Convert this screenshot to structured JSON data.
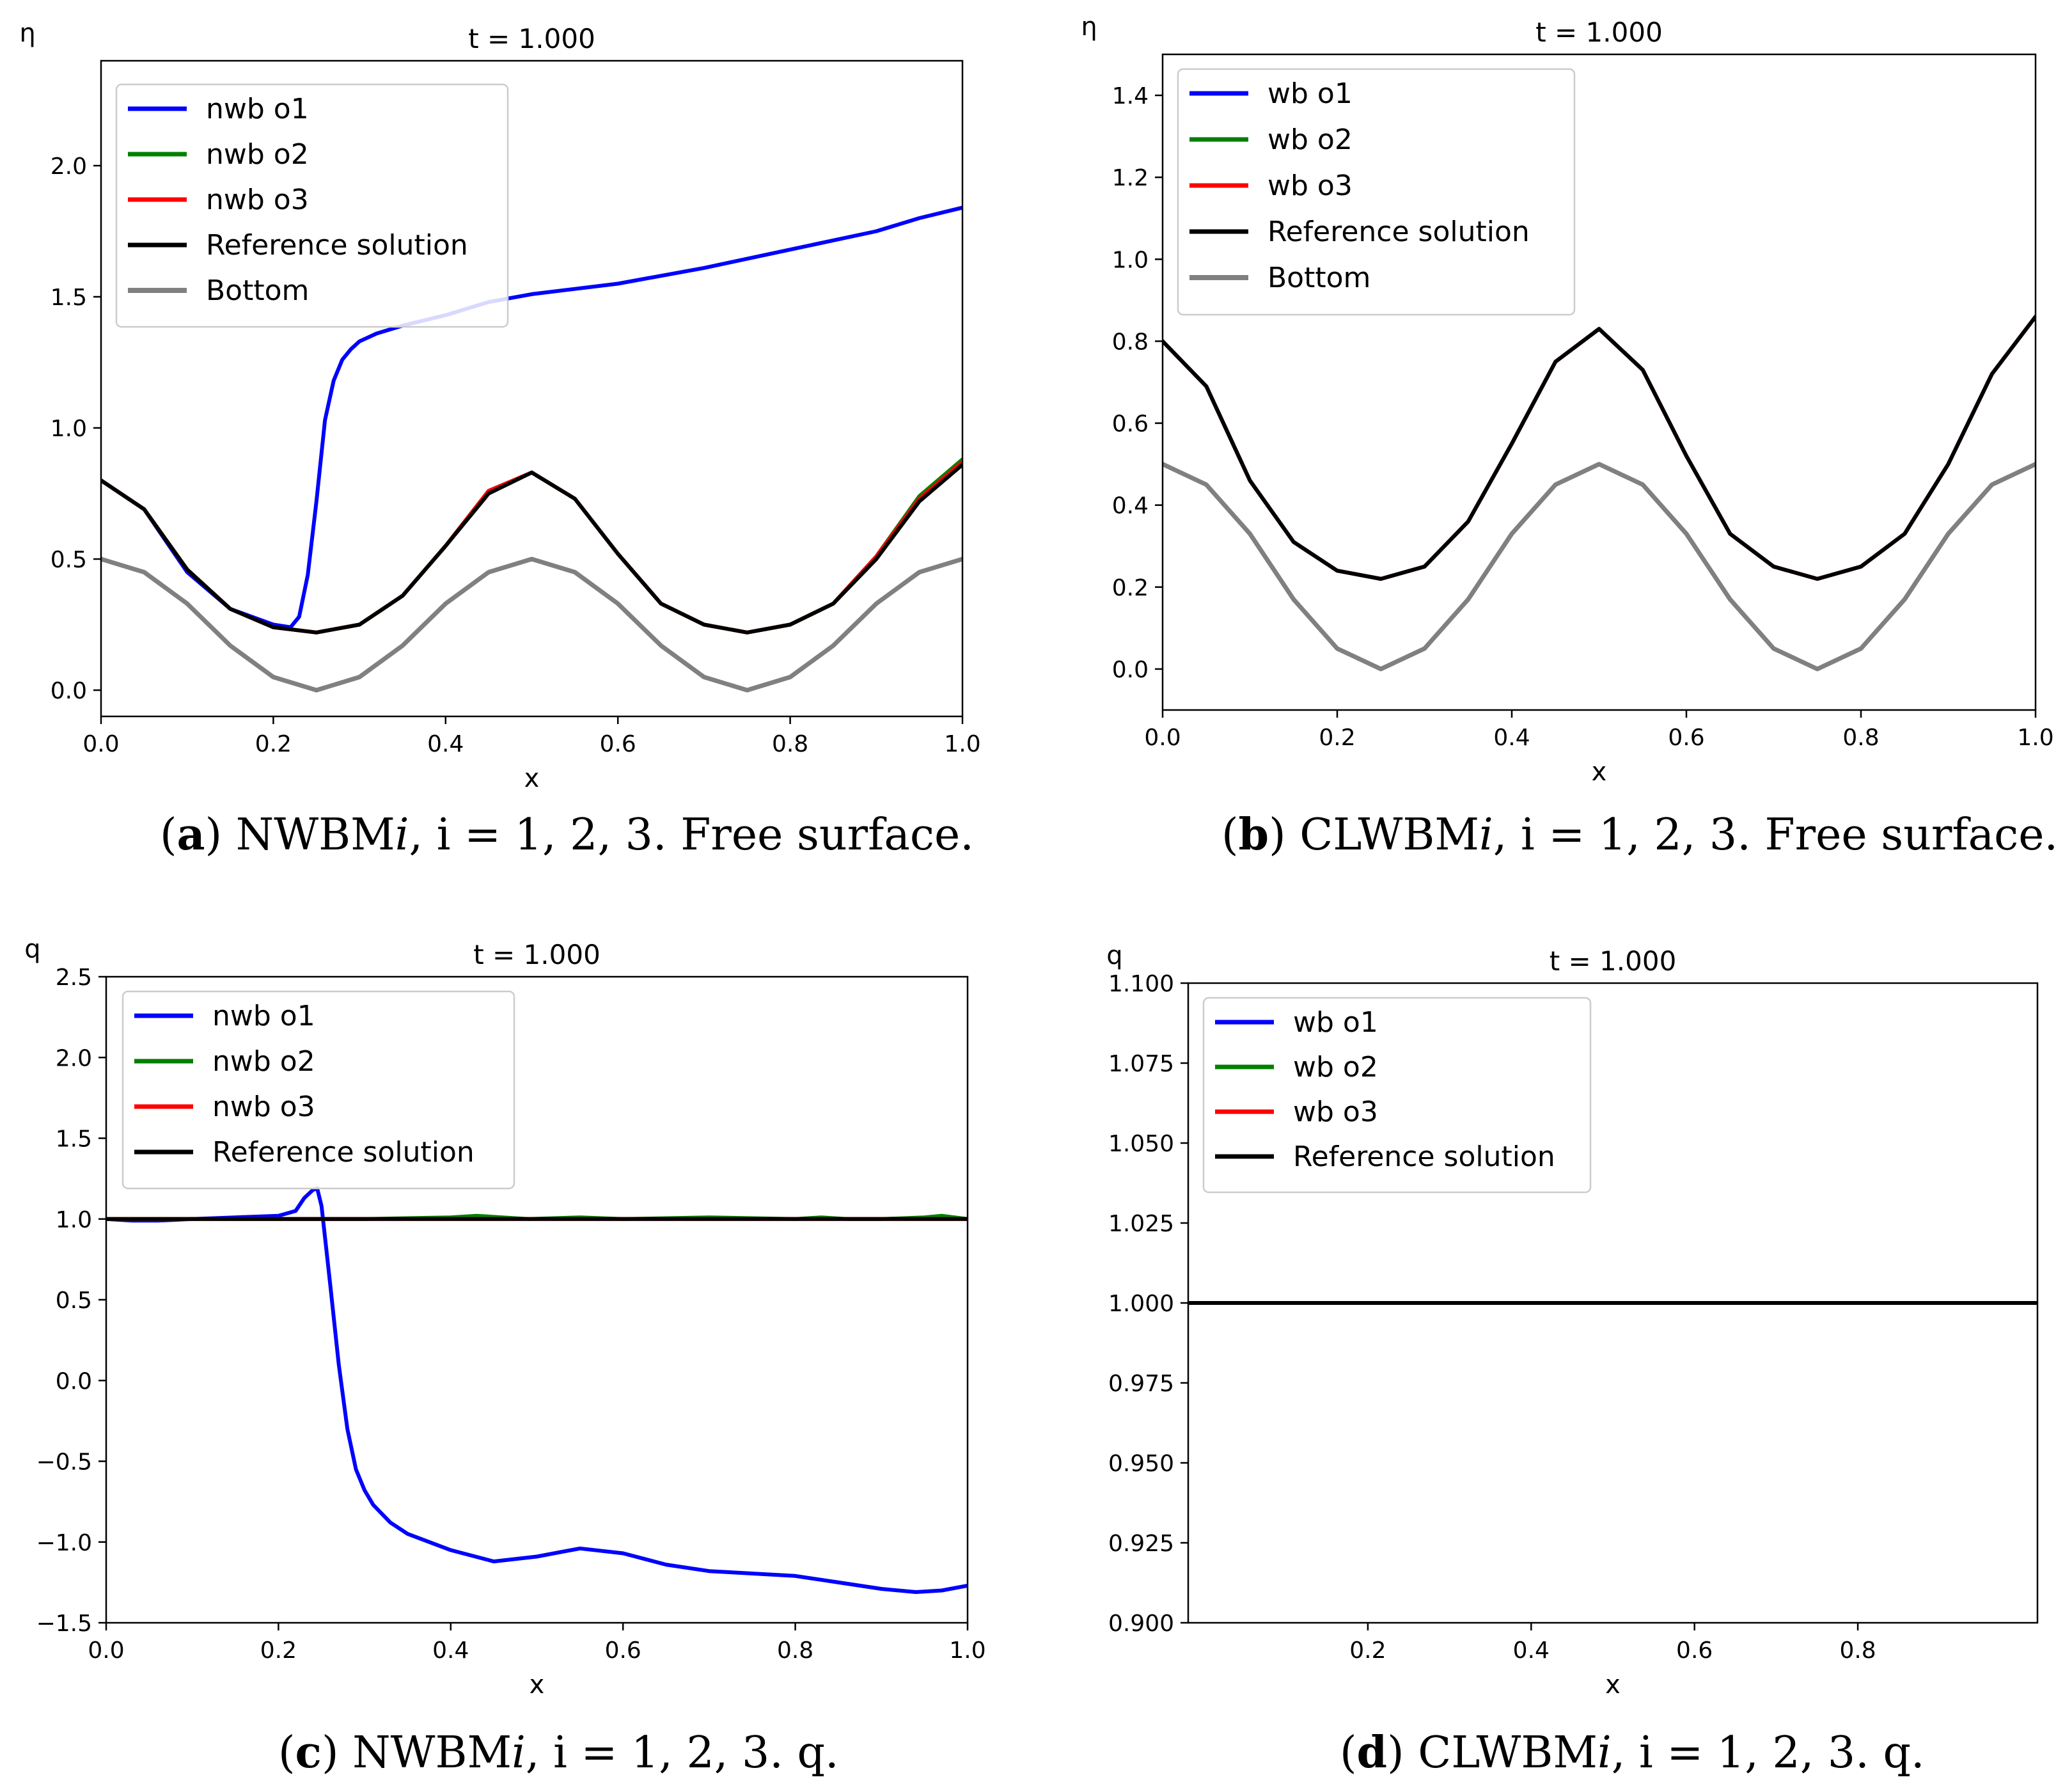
{
  "chart_data": [
    {
      "id": "a",
      "type": "line",
      "title": "t = 1.000",
      "xlabel": "x",
      "ylabel": "η",
      "xlim": [
        0.0,
        1.0
      ],
      "ylim": [
        -0.1,
        2.4
      ],
      "xticks": [
        0.0,
        0.2,
        0.4,
        0.6,
        0.8,
        1.0
      ],
      "xtick_labels": [
        "0.0",
        "0.2",
        "0.4",
        "0.6",
        "0.8",
        "1.0"
      ],
      "yticks": [
        0.0,
        0.5,
        1.0,
        1.5,
        2.0
      ],
      "ytick_labels": [
        "0.0",
        "0.5",
        "1.0",
        "1.5",
        "2.0"
      ],
      "legend_position": "top-left",
      "series": [
        {
          "name": "nwb o1",
          "color": "#0000ff",
          "width": 6,
          "legend": true,
          "x": [
            0.0,
            0.05,
            0.1,
            0.15,
            0.2,
            0.22,
            0.23,
            0.24,
            0.25,
            0.26,
            0.27,
            0.28,
            0.29,
            0.3,
            0.32,
            0.35,
            0.4,
            0.45,
            0.5,
            0.55,
            0.6,
            0.7,
            0.8,
            0.9,
            0.95,
            1.0
          ],
          "y": [
            0.8,
            0.69,
            0.45,
            0.31,
            0.25,
            0.24,
            0.28,
            0.44,
            0.72,
            1.03,
            1.18,
            1.26,
            1.3,
            1.33,
            1.36,
            1.39,
            1.43,
            1.48,
            1.51,
            1.53,
            1.55,
            1.61,
            1.68,
            1.75,
            1.8,
            1.84
          ]
        },
        {
          "name": "nwb o2",
          "color": "#008000",
          "width": 6,
          "legend": true,
          "x": [
            0.0,
            0.05,
            0.1,
            0.15,
            0.2,
            0.25,
            0.3,
            0.35,
            0.4,
            0.45,
            0.5,
            0.55,
            0.6,
            0.65,
            0.7,
            0.75,
            0.8,
            0.85,
            0.9,
            0.95,
            1.0
          ],
          "y": [
            0.8,
            0.69,
            0.46,
            0.31,
            0.24,
            0.22,
            0.25,
            0.36,
            0.55,
            0.76,
            0.83,
            0.73,
            0.52,
            0.33,
            0.25,
            0.22,
            0.25,
            0.33,
            0.51,
            0.74,
            0.88
          ]
        },
        {
          "name": "nwb o3",
          "color": "#ff0000",
          "width": 6,
          "legend": true,
          "x": [
            0.0,
            0.05,
            0.1,
            0.15,
            0.2,
            0.25,
            0.3,
            0.35,
            0.4,
            0.45,
            0.5,
            0.55,
            0.6,
            0.65,
            0.7,
            0.75,
            0.8,
            0.85,
            0.9,
            0.95,
            1.0
          ],
          "y": [
            0.8,
            0.69,
            0.46,
            0.31,
            0.24,
            0.22,
            0.25,
            0.36,
            0.55,
            0.76,
            0.83,
            0.73,
            0.52,
            0.33,
            0.25,
            0.22,
            0.25,
            0.33,
            0.51,
            0.73,
            0.87
          ]
        },
        {
          "name": "Reference solution",
          "color": "#000000",
          "width": 6,
          "legend": true,
          "x": [
            0.0,
            0.05,
            0.1,
            0.15,
            0.2,
            0.25,
            0.3,
            0.35,
            0.4,
            0.45,
            0.5,
            0.55,
            0.6,
            0.65,
            0.7,
            0.75,
            0.8,
            0.85,
            0.9,
            0.95,
            1.0
          ],
          "y": [
            0.8,
            0.69,
            0.46,
            0.31,
            0.24,
            0.22,
            0.25,
            0.36,
            0.55,
            0.75,
            0.83,
            0.73,
            0.52,
            0.33,
            0.25,
            0.22,
            0.25,
            0.33,
            0.5,
            0.72,
            0.86
          ]
        },
        {
          "name": "Bottom",
          "color": "#808080",
          "width": 7,
          "legend": true,
          "x": [
            0.0,
            0.05,
            0.1,
            0.15,
            0.2,
            0.25,
            0.3,
            0.35,
            0.4,
            0.45,
            0.5,
            0.55,
            0.6,
            0.65,
            0.7,
            0.75,
            0.8,
            0.85,
            0.9,
            0.95,
            1.0
          ],
          "y": [
            0.5,
            0.45,
            0.33,
            0.17,
            0.05,
            0.0,
            0.05,
            0.17,
            0.33,
            0.45,
            0.5,
            0.45,
            0.33,
            0.17,
            0.05,
            0.0,
            0.05,
            0.17,
            0.33,
            0.45,
            0.5
          ]
        }
      ]
    },
    {
      "id": "b",
      "type": "line",
      "title": "t = 1.000",
      "xlabel": "x",
      "ylabel": "η",
      "xlim": [
        0.0,
        1.0
      ],
      "ylim": [
        -0.1,
        1.5
      ],
      "xticks": [
        0.0,
        0.2,
        0.4,
        0.6,
        0.8,
        1.0
      ],
      "xtick_labels": [
        "0.0",
        "0.2",
        "0.4",
        "0.6",
        "0.8",
        "1.0"
      ],
      "yticks": [
        0.0,
        0.2,
        0.4,
        0.6,
        0.8,
        1.0,
        1.2,
        1.4
      ],
      "ytick_labels": [
        "0.0",
        "0.2",
        "0.4",
        "0.6",
        "0.8",
        "1.0",
        "1.2",
        "1.4"
      ],
      "legend_position": "top-left",
      "series": [
        {
          "name": "wb o1",
          "color": "#0000ff",
          "width": 6,
          "legend": true,
          "x": [
            0.0,
            0.05,
            0.1,
            0.15,
            0.2,
            0.25,
            0.3,
            0.35,
            0.4,
            0.45,
            0.5,
            0.55,
            0.6,
            0.65,
            0.7,
            0.75,
            0.8,
            0.85,
            0.9,
            0.95,
            1.0
          ],
          "y": [
            0.8,
            0.69,
            0.46,
            0.31,
            0.24,
            0.22,
            0.25,
            0.36,
            0.55,
            0.75,
            0.83,
            0.73,
            0.52,
            0.33,
            0.25,
            0.22,
            0.25,
            0.33,
            0.5,
            0.72,
            0.86
          ]
        },
        {
          "name": "wb o2",
          "color": "#008000",
          "width": 6,
          "legend": true,
          "x": [
            0.0,
            0.05,
            0.1,
            0.15,
            0.2,
            0.25,
            0.3,
            0.35,
            0.4,
            0.45,
            0.5,
            0.55,
            0.6,
            0.65,
            0.7,
            0.75,
            0.8,
            0.85,
            0.9,
            0.95,
            1.0
          ],
          "y": [
            0.8,
            0.69,
            0.46,
            0.31,
            0.24,
            0.22,
            0.25,
            0.36,
            0.55,
            0.75,
            0.83,
            0.73,
            0.52,
            0.33,
            0.25,
            0.22,
            0.25,
            0.33,
            0.5,
            0.72,
            0.86
          ]
        },
        {
          "name": "wb o3",
          "color": "#ff0000",
          "width": 6,
          "legend": true,
          "x": [
            0.0,
            0.05,
            0.1,
            0.15,
            0.2,
            0.25,
            0.3,
            0.35,
            0.4,
            0.45,
            0.5,
            0.55,
            0.6,
            0.65,
            0.7,
            0.75,
            0.8,
            0.85,
            0.9,
            0.95,
            1.0
          ],
          "y": [
            0.8,
            0.69,
            0.46,
            0.31,
            0.24,
            0.22,
            0.25,
            0.36,
            0.55,
            0.75,
            0.83,
            0.73,
            0.52,
            0.33,
            0.25,
            0.22,
            0.25,
            0.33,
            0.5,
            0.72,
            0.86
          ]
        },
        {
          "name": "Reference solution",
          "color": "#000000",
          "width": 6,
          "legend": true,
          "x": [
            0.0,
            0.05,
            0.1,
            0.15,
            0.2,
            0.25,
            0.3,
            0.35,
            0.4,
            0.45,
            0.5,
            0.55,
            0.6,
            0.65,
            0.7,
            0.75,
            0.8,
            0.85,
            0.9,
            0.95,
            1.0
          ],
          "y": [
            0.8,
            0.69,
            0.46,
            0.31,
            0.24,
            0.22,
            0.25,
            0.36,
            0.55,
            0.75,
            0.83,
            0.73,
            0.52,
            0.33,
            0.25,
            0.22,
            0.25,
            0.33,
            0.5,
            0.72,
            0.86
          ]
        },
        {
          "name": "Bottom",
          "color": "#808080",
          "width": 7,
          "legend": true,
          "x": [
            0.0,
            0.05,
            0.1,
            0.15,
            0.2,
            0.25,
            0.3,
            0.35,
            0.4,
            0.45,
            0.5,
            0.55,
            0.6,
            0.65,
            0.7,
            0.75,
            0.8,
            0.85,
            0.9,
            0.95,
            1.0
          ],
          "y": [
            0.5,
            0.45,
            0.33,
            0.17,
            0.05,
            0.0,
            0.05,
            0.17,
            0.33,
            0.45,
            0.5,
            0.45,
            0.33,
            0.17,
            0.05,
            0.0,
            0.05,
            0.17,
            0.33,
            0.45,
            0.5
          ]
        }
      ]
    },
    {
      "id": "c",
      "type": "line",
      "title": "t = 1.000",
      "xlabel": "x",
      "ylabel": "q",
      "xlim": [
        0.0,
        1.0
      ],
      "ylim": [
        -1.5,
        2.5
      ],
      "xticks": [
        0.0,
        0.2,
        0.4,
        0.6,
        0.8,
        1.0
      ],
      "xtick_labels": [
        "0.0",
        "0.2",
        "0.4",
        "0.6",
        "0.8",
        "1.0"
      ],
      "yticks": [
        -1.5,
        -1.0,
        -0.5,
        0.0,
        0.5,
        1.0,
        1.5,
        2.0,
        2.5
      ],
      "ytick_labels": [
        "−1.5",
        "−1.0",
        "−0.5",
        "0.0",
        "0.5",
        "1.0",
        "1.5",
        "2.0",
        "2.5"
      ],
      "legend_position": "top-left",
      "series": [
        {
          "name": "nwb o1",
          "color": "#0000ff",
          "width": 6,
          "legend": true,
          "x": [
            0.0,
            0.03,
            0.06,
            0.1,
            0.15,
            0.2,
            0.22,
            0.23,
            0.24,
            0.245,
            0.25,
            0.26,
            0.27,
            0.28,
            0.29,
            0.3,
            0.31,
            0.33,
            0.35,
            0.4,
            0.45,
            0.5,
            0.55,
            0.6,
            0.65,
            0.7,
            0.8,
            0.85,
            0.9,
            0.94,
            0.97,
            1.0
          ],
          "y": [
            1.0,
            0.99,
            0.99,
            1.0,
            1.01,
            1.02,
            1.05,
            1.13,
            1.18,
            1.19,
            1.08,
            0.6,
            0.1,
            -0.3,
            -0.55,
            -0.68,
            -0.77,
            -0.88,
            -0.95,
            -1.05,
            -1.12,
            -1.09,
            -1.04,
            -1.07,
            -1.14,
            -1.18,
            -1.21,
            -1.25,
            -1.29,
            -1.31,
            -1.3,
            -1.27
          ]
        },
        {
          "name": "nwb o2",
          "color": "#008000",
          "width": 6,
          "legend": true,
          "x": [
            0.0,
            0.1,
            0.2,
            0.3,
            0.4,
            0.43,
            0.46,
            0.49,
            0.55,
            0.6,
            0.7,
            0.8,
            0.83,
            0.86,
            0.9,
            0.95,
            0.97,
            1.0
          ],
          "y": [
            1.0,
            1.0,
            1.0,
            1.0,
            1.01,
            1.02,
            1.01,
            1.0,
            1.01,
            1.0,
            1.01,
            1.0,
            1.01,
            1.0,
            1.0,
            1.01,
            1.02,
            1.0
          ]
        },
        {
          "name": "nwb o3",
          "color": "#ff0000",
          "width": 6,
          "legend": true,
          "x": [
            0.0,
            0.5,
            1.0
          ],
          "y": [
            1.0,
            1.0,
            1.0
          ]
        },
        {
          "name": "Reference solution",
          "color": "#000000",
          "width": 6,
          "legend": true,
          "x": [
            0.0,
            1.0
          ],
          "y": [
            1.0,
            1.0
          ]
        }
      ]
    },
    {
      "id": "d",
      "type": "line",
      "title": "t = 1.000",
      "xlabel": "x",
      "ylabel": "q",
      "xlim": [
        -0.02,
        1.02
      ],
      "ylim": [
        0.9,
        1.1
      ],
      "xticks": [
        0.2,
        0.4,
        0.6,
        0.8
      ],
      "xtick_labels": [
        "0.2",
        "0.4",
        "0.6",
        "0.8"
      ],
      "yticks": [
        0.9,
        0.925,
        0.95,
        0.975,
        1.0,
        1.025,
        1.05,
        1.075,
        1.1
      ],
      "ytick_labels": [
        "0.900",
        "0.925",
        "0.950",
        "0.975",
        "1.000",
        "1.025",
        "1.050",
        "1.075",
        "1.100"
      ],
      "legend_position": "top-left",
      "series": [
        {
          "name": "wb o1",
          "color": "#0000ff",
          "width": 6,
          "legend": true,
          "x": [
            -0.02,
            1.02
          ],
          "y": [
            1.0,
            1.0
          ]
        },
        {
          "name": "wb o2",
          "color": "#008000",
          "width": 6,
          "legend": true,
          "x": [
            -0.02,
            1.02
          ],
          "y": [
            1.0,
            1.0
          ]
        },
        {
          "name": "wb o3",
          "color": "#ff0000",
          "width": 6,
          "legend": true,
          "x": [
            -0.02,
            1.02
          ],
          "y": [
            1.0,
            1.0
          ]
        },
        {
          "name": "Reference solution",
          "color": "#000000",
          "width": 6,
          "legend": true,
          "x": [
            -0.02,
            1.02
          ],
          "y": [
            1.0,
            1.0
          ]
        }
      ]
    }
  ],
  "captions": {
    "a": {
      "letter": "a",
      "method": "NWBM",
      "idx": "i",
      "cond": ", i = 1, 2, 3.",
      "desc": "Free surface."
    },
    "b": {
      "letter": "b",
      "method": "CLWBM",
      "idx": "i",
      "cond": ", i = 1, 2, 3.",
      "desc": "Free surface."
    },
    "c": {
      "letter": "c",
      "method": "NWBM",
      "idx": "i",
      "cond": ", i = 1, 2, 3.",
      "desc": "q."
    },
    "d": {
      "letter": "d",
      "method": "CLWBM",
      "idx": "i",
      "cond": ", i = 1, 2, 3.",
      "desc": "q."
    }
  }
}
